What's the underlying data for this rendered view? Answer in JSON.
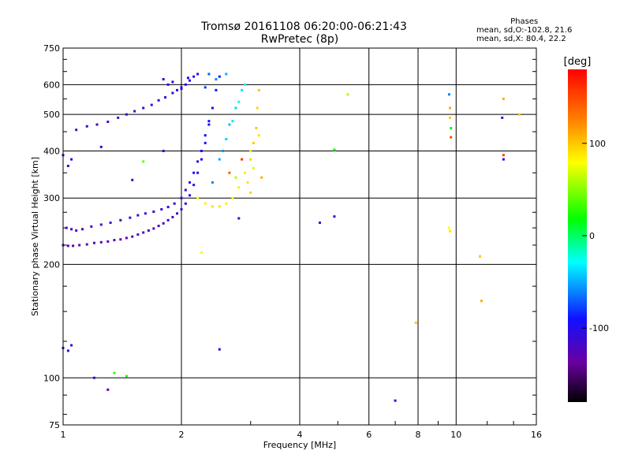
{
  "chart_data": {
    "type": "scatter",
    "title": "Tromsø 20161108 06:20:00-06:21:43",
    "subtitle": "RwPretec (8p)",
    "xlabel": "Frequency [MHz]",
    "ylabel": "Stationary phase Virtual Height [km]",
    "x_scale": "log",
    "y_scale": "log",
    "xlim": [
      1,
      16
    ],
    "ylim": [
      75,
      750
    ],
    "x_ticks": [
      1,
      2,
      4,
      6,
      8,
      10,
      16
    ],
    "x_tick_labels": [
      "1",
      "2",
      "4",
      "6",
      "8",
      "10",
      "16"
    ],
    "y_ticks": [
      75,
      100,
      200,
      300,
      400,
      500,
      600,
      750
    ],
    "y_tick_labels": [
      "75",
      "100",
      "200",
      "300",
      "400",
      "500",
      "600",
      "750"
    ],
    "grid": true,
    "phases_legend": {
      "title": "Phases",
      "line1": "mean, sd,O:-102.8, 21.6",
      "line2": "mean, sd,X:  80.4, 22.2"
    },
    "colorbar": {
      "label": "[deg]",
      "range": [
        -180,
        180
      ],
      "ticks": [
        100,
        0,
        -100
      ],
      "tick_labels": [
        "100",
        "0",
        "-100"
      ]
    },
    "series": [
      {
        "points": [
          [
            1.0,
            225,
            -130
          ],
          [
            1.03,
            224,
            -125
          ],
          [
            1.06,
            224,
            -130
          ],
          [
            1.1,
            225,
            -128
          ],
          [
            1.15,
            226,
            -130
          ],
          [
            1.2,
            228,
            -125
          ],
          [
            1.25,
            229,
            -128
          ],
          [
            1.3,
            230,
            -130
          ],
          [
            1.35,
            232,
            -126
          ],
          [
            1.4,
            233,
            -128
          ],
          [
            1.45,
            235,
            -125
          ],
          [
            1.5,
            237,
            -127
          ],
          [
            1.55,
            240,
            -122
          ],
          [
            1.6,
            243,
            -125
          ],
          [
            1.65,
            246,
            -120
          ],
          [
            1.7,
            249,
            -122
          ],
          [
            1.75,
            253,
            -118
          ],
          [
            1.8,
            257,
            -120
          ],
          [
            1.85,
            262,
            -118
          ],
          [
            1.9,
            267,
            -115
          ],
          [
            1.95,
            273,
            -112
          ],
          [
            2.0,
            280,
            -110
          ],
          [
            2.05,
            290,
            -108
          ],
          [
            2.1,
            305,
            -105
          ],
          [
            2.15,
            325,
            -105
          ],
          [
            2.2,
            350,
            -102
          ],
          [
            2.25,
            380,
            -100
          ],
          [
            2.3,
            420,
            -98
          ],
          [
            2.35,
            470,
            -95
          ],
          [
            2.4,
            520,
            -92
          ],
          [
            2.45,
            580,
            -90
          ],
          [
            2.5,
            630,
            -88
          ],
          [
            1.02,
            250,
            -120
          ],
          [
            1.05,
            248,
            -118
          ],
          [
            1.08,
            246,
            -122
          ],
          [
            1.12,
            248,
            -120
          ],
          [
            1.18,
            252,
            -118
          ],
          [
            1.25,
            255,
            -120
          ],
          [
            1.32,
            258,
            -118
          ],
          [
            1.4,
            262,
            -115
          ],
          [
            1.48,
            266,
            -112
          ],
          [
            1.55,
            270,
            -115
          ],
          [
            1.62,
            273,
            -112
          ],
          [
            1.7,
            276,
            -110
          ],
          [
            1.78,
            280,
            -108
          ],
          [
            1.85,
            284,
            -110
          ],
          [
            1.92,
            290,
            -108
          ],
          [
            2.0,
            300,
            -105
          ],
          [
            2.05,
            315,
            -103
          ],
          [
            2.1,
            330,
            -100
          ],
          [
            2.15,
            350,
            -100
          ],
          [
            2.2,
            375,
            -98
          ],
          [
            2.25,
            400,
            -95
          ],
          [
            2.3,
            440,
            -92
          ],
          [
            2.35,
            480,
            -90
          ],
          [
            1.08,
            455,
            -118
          ],
          [
            1.15,
            465,
            -115
          ],
          [
            1.22,
            470,
            -118
          ],
          [
            1.3,
            478,
            -115
          ],
          [
            1.38,
            490,
            -112
          ],
          [
            1.45,
            500,
            -115
          ],
          [
            1.52,
            510,
            -112
          ],
          [
            1.6,
            520,
            -110
          ],
          [
            1.68,
            530,
            -112
          ],
          [
            1.75,
            545,
            -110
          ],
          [
            1.82,
            555,
            -108
          ],
          [
            1.9,
            570,
            -105
          ],
          [
            1.95,
            580,
            -108
          ],
          [
            2.0,
            590,
            -105
          ],
          [
            2.05,
            600,
            -102
          ],
          [
            2.1,
            615,
            -100
          ],
          [
            2.15,
            630,
            -100
          ],
          [
            2.2,
            640,
            -98
          ],
          [
            1.85,
            600,
            -100
          ],
          [
            1.9,
            610,
            -102
          ],
          [
            2.0,
            585,
            -100
          ],
          [
            2.08,
            625,
            -98
          ],
          [
            2.4,
            330,
            -60
          ],
          [
            2.5,
            380,
            -50
          ],
          [
            2.6,
            430,
            -40
          ],
          [
            2.7,
            480,
            -35
          ],
          [
            2.8,
            540,
            -30
          ],
          [
            2.9,
            600,
            -25
          ],
          [
            2.55,
            400,
            -55
          ],
          [
            2.65,
            470,
            -45
          ],
          [
            2.75,
            520,
            -40
          ],
          [
            2.85,
            580,
            -35
          ],
          [
            2.45,
            620,
            -60
          ],
          [
            2.6,
            640,
            -50
          ],
          [
            2.35,
            640,
            -70
          ],
          [
            2.3,
            590,
            -80
          ],
          [
            2.2,
            300,
            80
          ],
          [
            2.3,
            290,
            85
          ],
          [
            2.4,
            285,
            90
          ],
          [
            2.5,
            285,
            90
          ],
          [
            2.6,
            290,
            85
          ],
          [
            2.7,
            300,
            80
          ],
          [
            2.8,
            320,
            70
          ],
          [
            2.9,
            350,
            85
          ],
          [
            3.0,
            380,
            95
          ],
          [
            3.05,
            420,
            100
          ],
          [
            3.1,
            460,
            100
          ],
          [
            3.12,
            520,
            95
          ],
          [
            3.15,
            580,
            100
          ],
          [
            2.95,
            330,
            90
          ],
          [
            3.0,
            400,
            85
          ],
          [
            3.05,
            360,
            70
          ],
          [
            2.75,
            340,
            60
          ],
          [
            2.65,
            350,
            140
          ],
          [
            2.85,
            380,
            160
          ],
          [
            3.0,
            310,
            95
          ],
          [
            3.15,
            440,
            90
          ],
          [
            3.2,
            340,
            110
          ],
          [
            1.0,
            390,
            -110
          ],
          [
            1.05,
            380,
            -100
          ],
          [
            1.03,
            365,
            -120
          ],
          [
            1.0,
            120,
            -120
          ],
          [
            1.03,
            118,
            -115
          ],
          [
            1.05,
            122,
            -100
          ],
          [
            1.2,
            100,
            -110
          ],
          [
            1.35,
            103,
            30
          ],
          [
            1.45,
            101,
            20
          ],
          [
            1.3,
            93,
            -130
          ],
          [
            1.25,
            410,
            -100
          ],
          [
            1.5,
            335,
            -110
          ],
          [
            1.6,
            375,
            40
          ],
          [
            1.8,
            620,
            -110
          ],
          [
            1.8,
            400,
            -100
          ],
          [
            2.25,
            215,
            80
          ],
          [
            2.5,
            119,
            -110
          ],
          [
            2.8,
            265,
            -110
          ],
          [
            4.5,
            258,
            -120
          ],
          [
            4.9,
            268,
            -110
          ],
          [
            4.9,
            403,
            20
          ],
          [
            5.3,
            565,
            60
          ],
          [
            7.0,
            87,
            -110
          ],
          [
            7.9,
            140,
            100
          ],
          [
            9.6,
            250,
            80
          ],
          [
            9.65,
            245,
            90
          ],
          [
            9.6,
            565,
            -60
          ],
          [
            9.65,
            520,
            110
          ],
          [
            9.7,
            460,
            20
          ],
          [
            9.7,
            435,
            150
          ],
          [
            9.65,
            490,
            100
          ],
          [
            11.5,
            210,
            100
          ],
          [
            11.6,
            160,
            110
          ],
          [
            13.2,
            550,
            110
          ],
          [
            13.1,
            490,
            -110
          ],
          [
            13.2,
            390,
            150
          ],
          [
            13.2,
            380,
            -110
          ],
          [
            14.5,
            500,
            100
          ]
        ]
      }
    ]
  }
}
